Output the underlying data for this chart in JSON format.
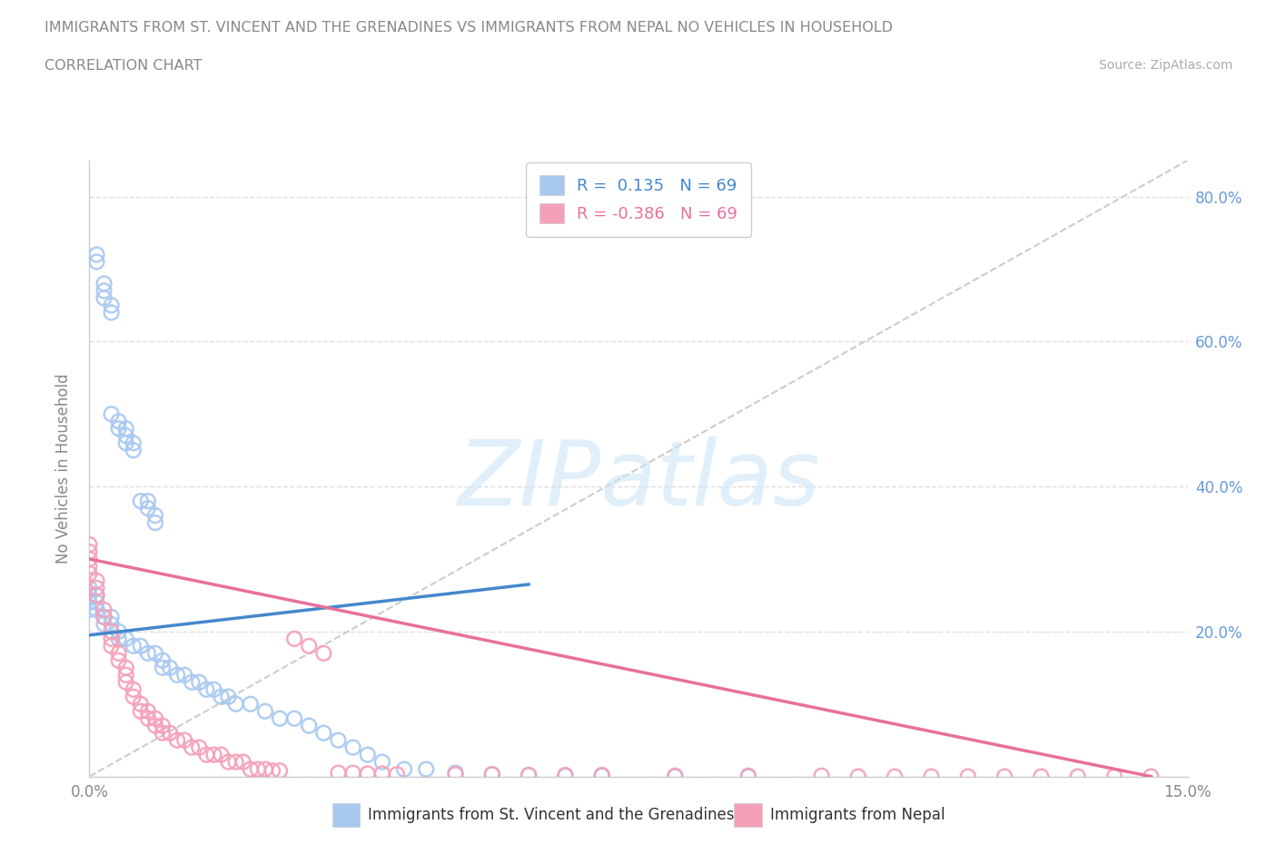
{
  "title_line1": "IMMIGRANTS FROM ST. VINCENT AND THE GRENADINES VS IMMIGRANTS FROM NEPAL NO VEHICLES IN HOUSEHOLD",
  "title_line2": "CORRELATION CHART",
  "source_text": "Source: ZipAtlas.com",
  "watermark_text": "ZIPatlas",
  "ylabel": "No Vehicles in Household",
  "xlim": [
    0.0,
    0.15
  ],
  "ylim": [
    0.0,
    0.85
  ],
  "r_blue": 0.135,
  "r_pink": -0.386,
  "n_blue": 69,
  "n_pink": 69,
  "blue_color": "#a8c8f0",
  "pink_color": "#f4a0b8",
  "blue_line_color": "#4488cc",
  "pink_line_color": "#e8709a",
  "ref_line_color": "#cccccc",
  "background_color": "#ffffff",
  "grid_color": "#dddddd",
  "title_color": "#888888",
  "label_color": "#888888",
  "right_tick_color": "#6699dd",
  "blue_scatter_x": [
    0.001,
    0.001,
    0.002,
    0.002,
    0.002,
    0.003,
    0.003,
    0.003,
    0.004,
    0.004,
    0.005,
    0.005,
    0.005,
    0.006,
    0.006,
    0.007,
    0.008,
    0.008,
    0.009,
    0.009,
    0.0,
    0.0,
    0.0,
    0.0,
    0.001,
    0.001,
    0.001,
    0.002,
    0.002,
    0.003,
    0.003,
    0.004,
    0.004,
    0.005,
    0.006,
    0.007,
    0.008,
    0.009,
    0.01,
    0.01,
    0.011,
    0.012,
    0.013,
    0.014,
    0.015,
    0.016,
    0.017,
    0.018,
    0.019,
    0.02,
    0.022,
    0.024,
    0.026,
    0.028,
    0.03,
    0.032,
    0.034,
    0.036,
    0.038,
    0.04,
    0.043,
    0.046,
    0.05,
    0.055,
    0.06,
    0.065,
    0.07,
    0.08,
    0.09
  ],
  "blue_scatter_y": [
    0.72,
    0.71,
    0.68,
    0.67,
    0.66,
    0.65,
    0.64,
    0.5,
    0.49,
    0.48,
    0.48,
    0.47,
    0.46,
    0.46,
    0.45,
    0.38,
    0.38,
    0.37,
    0.36,
    0.35,
    0.26,
    0.25,
    0.24,
    0.23,
    0.25,
    0.24,
    0.23,
    0.22,
    0.21,
    0.22,
    0.21,
    0.2,
    0.19,
    0.19,
    0.18,
    0.18,
    0.17,
    0.17,
    0.16,
    0.15,
    0.15,
    0.14,
    0.14,
    0.13,
    0.13,
    0.12,
    0.12,
    0.11,
    0.11,
    0.1,
    0.1,
    0.09,
    0.08,
    0.08,
    0.07,
    0.06,
    0.05,
    0.04,
    0.03,
    0.02,
    0.01,
    0.01,
    0.005,
    0.003,
    0.002,
    0.001,
    0.001,
    0.0,
    0.0
  ],
  "pink_scatter_x": [
    0.0,
    0.0,
    0.0,
    0.0,
    0.0,
    0.001,
    0.001,
    0.001,
    0.002,
    0.002,
    0.003,
    0.003,
    0.003,
    0.004,
    0.004,
    0.005,
    0.005,
    0.005,
    0.006,
    0.006,
    0.007,
    0.007,
    0.008,
    0.008,
    0.009,
    0.009,
    0.01,
    0.01,
    0.011,
    0.012,
    0.013,
    0.014,
    0.015,
    0.016,
    0.017,
    0.018,
    0.019,
    0.02,
    0.021,
    0.022,
    0.023,
    0.024,
    0.025,
    0.026,
    0.028,
    0.03,
    0.032,
    0.034,
    0.036,
    0.038,
    0.04,
    0.042,
    0.05,
    0.055,
    0.06,
    0.065,
    0.07,
    0.08,
    0.09,
    0.1,
    0.105,
    0.11,
    0.115,
    0.12,
    0.125,
    0.13,
    0.135,
    0.14,
    0.145
  ],
  "pink_scatter_y": [
    0.32,
    0.31,
    0.3,
    0.29,
    0.28,
    0.27,
    0.26,
    0.25,
    0.23,
    0.22,
    0.2,
    0.19,
    0.18,
    0.17,
    0.16,
    0.15,
    0.14,
    0.13,
    0.12,
    0.11,
    0.1,
    0.09,
    0.09,
    0.08,
    0.08,
    0.07,
    0.07,
    0.06,
    0.06,
    0.05,
    0.05,
    0.04,
    0.04,
    0.03,
    0.03,
    0.03,
    0.02,
    0.02,
    0.02,
    0.01,
    0.01,
    0.01,
    0.008,
    0.008,
    0.19,
    0.18,
    0.17,
    0.005,
    0.005,
    0.004,
    0.004,
    0.003,
    0.003,
    0.003,
    0.002,
    0.002,
    0.002,
    0.001,
    0.001,
    0.001,
    0.0,
    0.0,
    0.0,
    0.0,
    0.0,
    0.0,
    0.0,
    0.0,
    0.0
  ],
  "blue_trend_x": [
    0.0,
    0.06
  ],
  "blue_trend_y": [
    0.195,
    0.265
  ],
  "pink_trend_x": [
    0.0,
    0.145
  ],
  "pink_trend_y": [
    0.3,
    0.0
  ]
}
